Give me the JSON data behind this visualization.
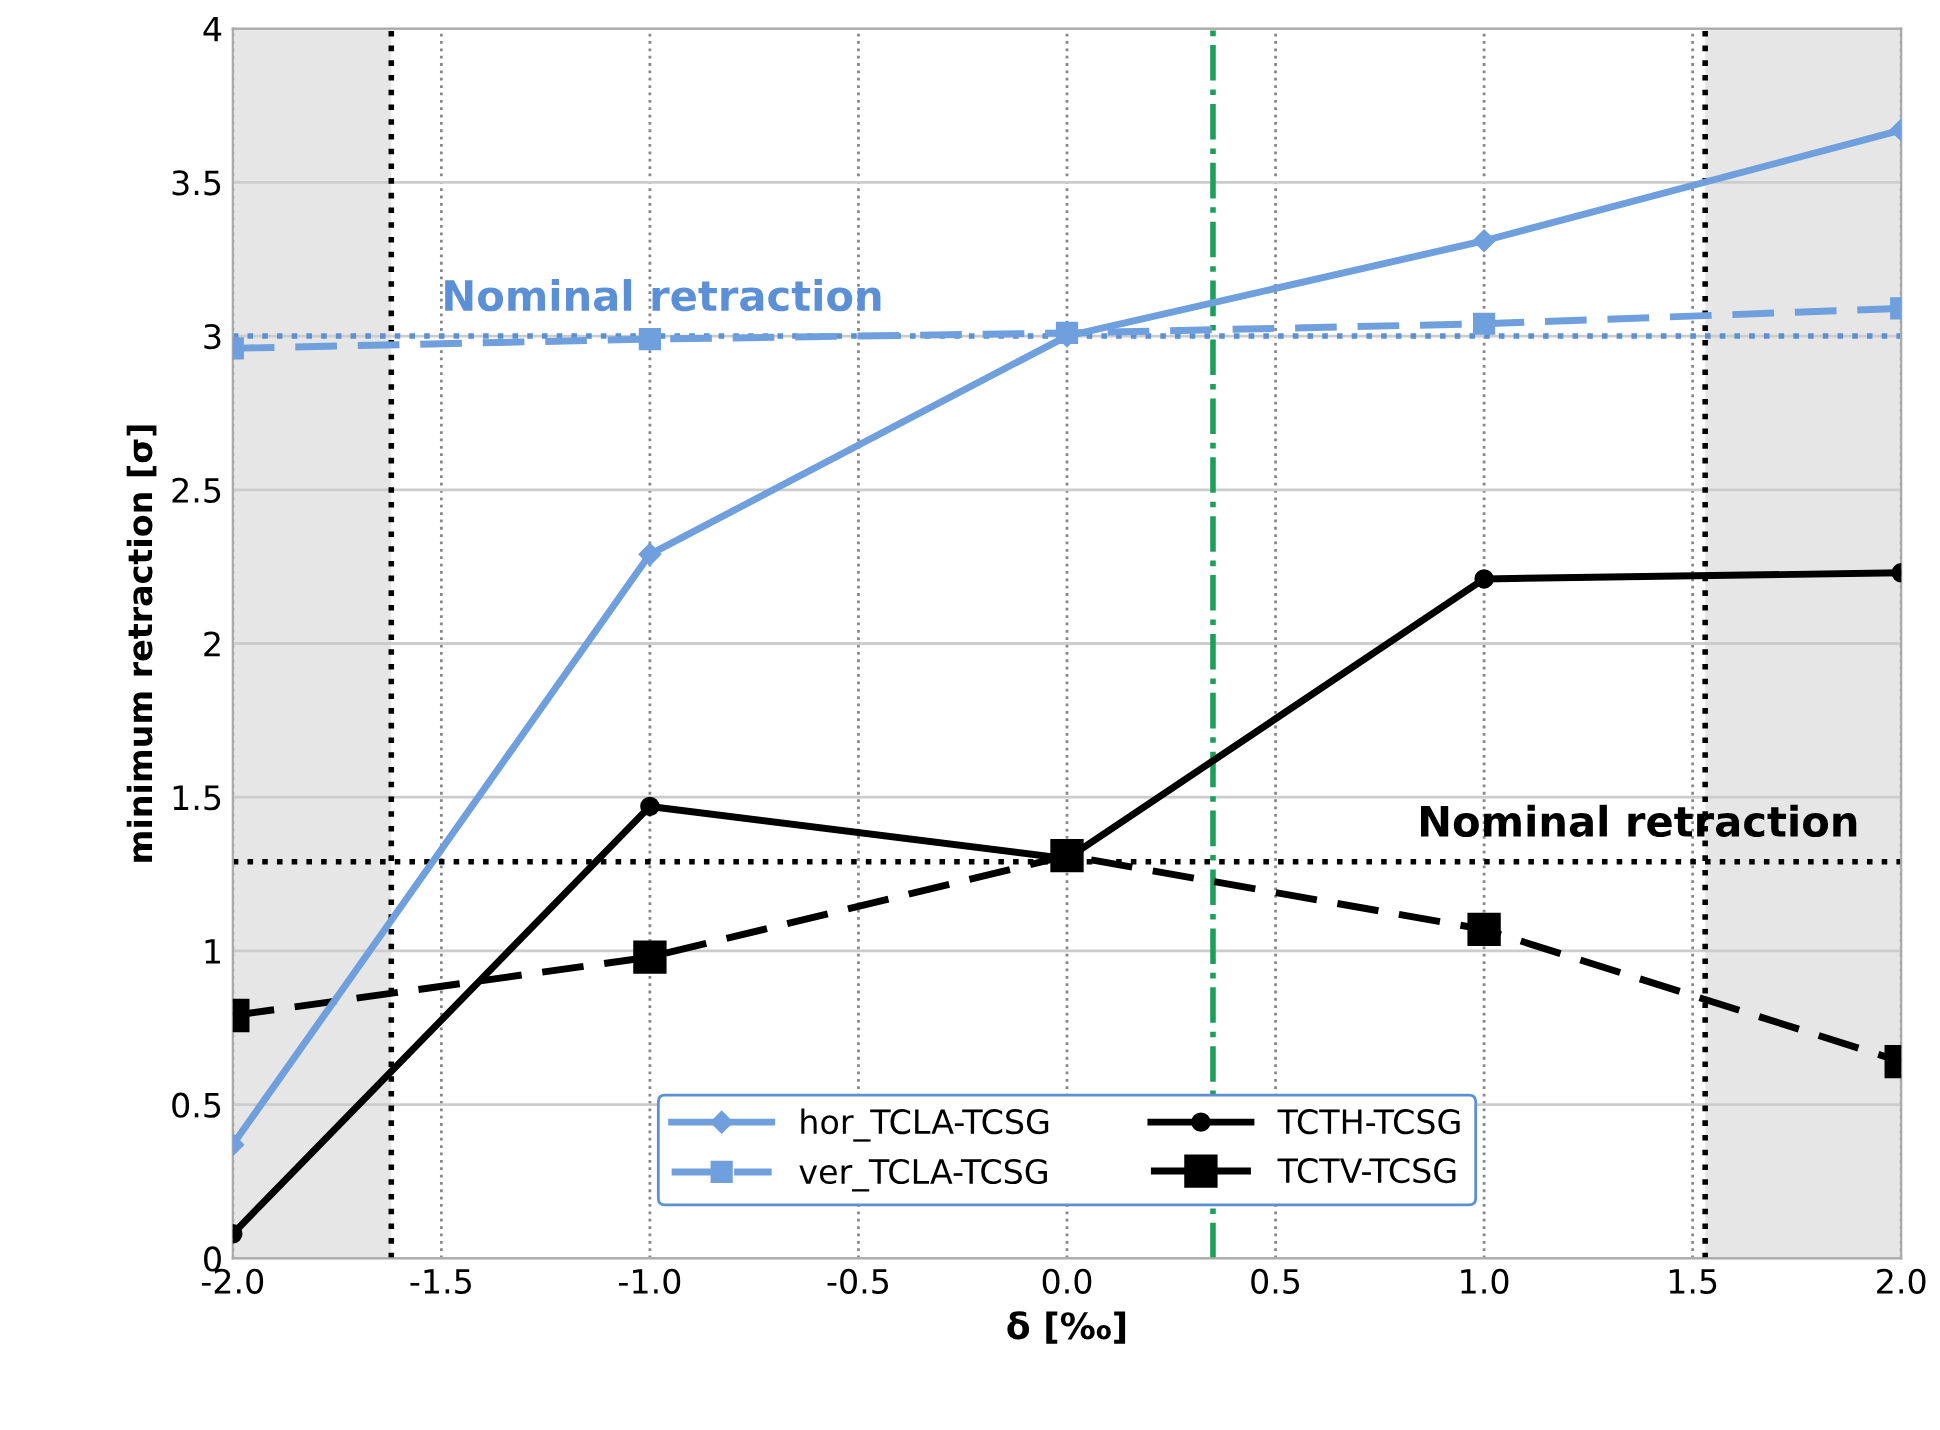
{
  "chart_data": {
    "type": "line",
    "xlabel": "δ [‰]",
    "ylabel": "minimum retraction [σ]",
    "x": [
      -2,
      -1,
      0,
      1,
      2
    ],
    "series": [
      {
        "name": "hor_TCLA-TCSG",
        "color": "#6f9fdc",
        "values": [
          0.37,
          2.29,
          3.0,
          3.31,
          3.67
        ],
        "marker": "diamond",
        "line_style": "solid"
      },
      {
        "name": "ver_TCLA-TCSG",
        "color": "#6f9fdc",
        "values": [
          2.96,
          2.99,
          3.01,
          3.04,
          3.09
        ],
        "marker": "square",
        "line_style": "dashed"
      },
      {
        "name": "TCTH-TCSG",
        "color": "#000000",
        "values": [
          0.08,
          1.47,
          1.3,
          2.21,
          2.23
        ],
        "marker": "circle",
        "line_style": "solid"
      },
      {
        "name": "TCTV-TCSG",
        "color": "#000000",
        "values": [
          0.79,
          0.98,
          1.31,
          1.07,
          0.64
        ],
        "marker": "square",
        "line_style": "dashed"
      }
    ],
    "xlim": [
      -2,
      2
    ],
    "ylim": [
      0,
      4
    ],
    "xticks": [
      {
        "value": -2,
        "label": "-2.0"
      },
      {
        "value": -1.5,
        "label": "-1.5"
      },
      {
        "value": -1,
        "label": "-1.0"
      },
      {
        "value": -0.5,
        "label": "-0.5"
      },
      {
        "value": 0,
        "label": "0.0"
      },
      {
        "value": 0.5,
        "label": "0.5"
      },
      {
        "value": 1,
        "label": "1.0"
      },
      {
        "value": 1.5,
        "label": "1.5"
      },
      {
        "value": 2,
        "label": "2.0"
      }
    ],
    "yticks": [
      0,
      0.5,
      1,
      1.5,
      2,
      2.5,
      3,
      3.5,
      4
    ],
    "ref_lines": [
      {
        "axis": "y",
        "value": 3.0,
        "color": "#5b8fd6",
        "line_style": "dotted"
      },
      {
        "axis": "y",
        "value": 1.29,
        "color": "#000000",
        "line_style": "dotted"
      },
      {
        "axis": "x",
        "value": -1.62,
        "color": "#000000",
        "line_style": "dotted"
      },
      {
        "axis": "x",
        "value": 1.53,
        "color": "#000000",
        "line_style": "dotted"
      },
      {
        "axis": "x",
        "value": 0.35,
        "color": "#1aa05a",
        "line_style": "dashdot"
      }
    ],
    "bands": [
      {
        "axis": "x",
        "from": -2,
        "to": -1.62,
        "color": "#e6e6e6"
      },
      {
        "axis": "x",
        "from": 1.53,
        "to": 2,
        "color": "#e6e6e6"
      }
    ],
    "annotations": [
      {
        "text": "Nominal retraction",
        "x": -1.5,
        "y": 3.0
      },
      {
        "text": "Nominal retraction",
        "x": 1.9,
        "y": 1.29
      }
    ],
    "grid": true,
    "legend": "bottom"
  }
}
